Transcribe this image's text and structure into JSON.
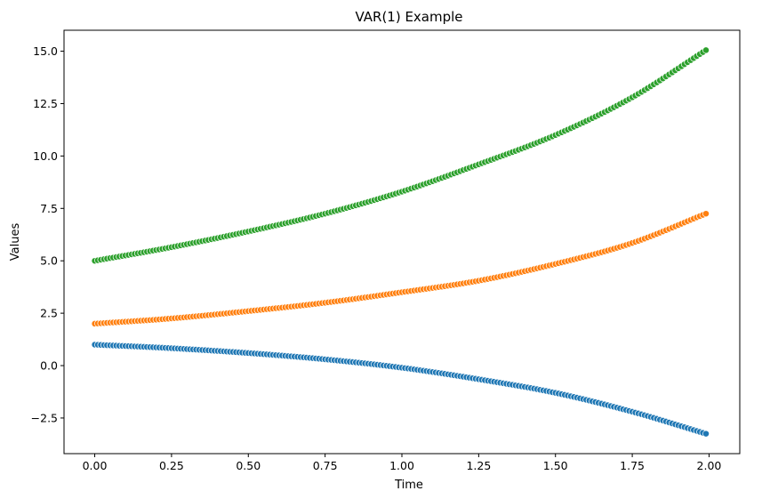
{
  "chart_data": {
    "type": "scatter",
    "title": "VAR(1) Example",
    "xlabel": "Time",
    "ylabel": "Values",
    "xlim": [
      -0.1,
      2.1
    ],
    "ylim": [
      -4.2,
      16.0
    ],
    "x_ticks": [
      0.0,
      0.25,
      0.5,
      0.75,
      1.0,
      1.25,
      1.5,
      1.75,
      2.0
    ],
    "x_tick_labels": [
      "0.00",
      "0.25",
      "0.50",
      "0.75",
      "1.00",
      "1.25",
      "1.50",
      "1.75",
      "2.00"
    ],
    "y_ticks": [
      -2.5,
      0.0,
      2.5,
      5.0,
      7.5,
      10.0,
      12.5,
      15.0
    ],
    "y_tick_labels": [
      "−2.5",
      "0.0",
      "2.5",
      "5.0",
      "7.5",
      "10.0",
      "12.5",
      "15.0"
    ],
    "grid": false,
    "legend": "none",
    "x": {
      "start": 0.0,
      "end": 1.99,
      "step": 0.01
    },
    "series": [
      {
        "color": "#1f77b4",
        "values_at": {
          "0.0": 1.0,
          "0.25": 0.83,
          "0.5": 0.6,
          "0.75": 0.3,
          "1.0": -0.1,
          "1.25": -0.65,
          "1.5": -1.3,
          "1.75": -2.2,
          "1.99": -3.25
        }
      },
      {
        "color": "#ff7f0e",
        "values_at": {
          "0.0": 2.0,
          "0.25": 2.25,
          "0.5": 2.6,
          "0.75": 3.0,
          "1.0": 3.5,
          "1.25": 4.05,
          "1.5": 4.85,
          "1.75": 5.85,
          "1.99": 7.25
        }
      },
      {
        "color": "#2ca02c",
        "values_at": {
          "0.0": 5.0,
          "0.25": 5.65,
          "0.5": 6.4,
          "0.75": 7.25,
          "1.0": 8.3,
          "1.25": 9.6,
          "1.5": 11.0,
          "1.75": 12.8,
          "1.99": 15.05
        }
      }
    ]
  }
}
